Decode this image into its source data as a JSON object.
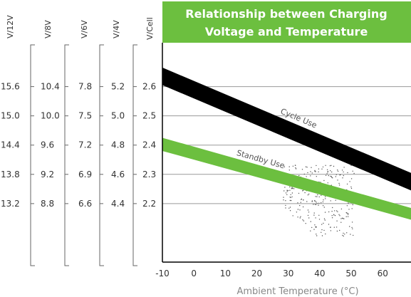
{
  "chart_data": {
    "type": "line",
    "title": "Relationship between Charging Voltage and Temperature",
    "title_lines": [
      "Relationship between Charging",
      "Voltage and Temperature"
    ],
    "xlabel": "Ambient Temperature (°C)",
    "x_ticks": [
      -10,
      0,
      10,
      20,
      30,
      40,
      50,
      60
    ],
    "xlim": [
      -10,
      69
    ],
    "primary_axis": {
      "label": "V/Cell",
      "ticks": [
        2.6,
        2.5,
        2.4,
        2.3,
        2.2
      ],
      "ylim": [
        2.0,
        2.75
      ]
    },
    "secondary_axes": [
      {
        "label": "V/12V",
        "ticks": [
          15.6,
          15.0,
          14.4,
          13.8,
          13.2
        ]
      },
      {
        "label": "V/8V",
        "ticks": [
          10.4,
          10.0,
          9.6,
          9.2,
          8.8
        ]
      },
      {
        "label": "V/6V",
        "ticks": [
          7.8,
          7.5,
          7.2,
          6.9,
          6.6
        ]
      },
      {
        "label": "V/4V",
        "ticks": [
          5.2,
          5.0,
          4.8,
          4.6,
          4.4
        ]
      }
    ],
    "grid": true,
    "series": [
      {
        "name": "Cycle Use",
        "band": true,
        "x": [
          -10,
          69
        ],
        "upper": [
          2.665,
          2.305
        ],
        "lower": [
          2.605,
          2.245
        ],
        "color": "#000000"
      },
      {
        "name": "Standby Use",
        "band": true,
        "x": [
          -10,
          69
        ],
        "upper": [
          2.425,
          2.185
        ],
        "lower": [
          2.38,
          2.145
        ],
        "color": "#6cbf3f"
      }
    ],
    "title_color": "#6cbf3f"
  }
}
